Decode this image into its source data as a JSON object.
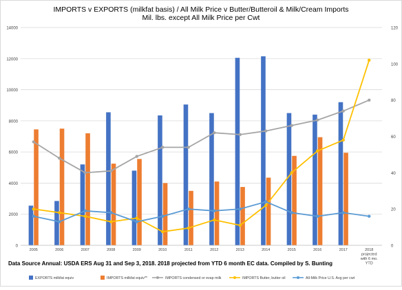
{
  "chart_data": {
    "type": "bar",
    "title": "IMPORTS v EXPORTS (milkfat basis) / All Milk Price v Butter/Butteroil & Milk/Cream Imports",
    "subtitle": "Mil. lbs. except All Milk Price per Cwt",
    "categories": [
      "2005",
      "2006",
      "2007",
      "2008",
      "2009",
      "2010",
      "2011",
      "2012",
      "2013",
      "2014",
      "2015",
      "2016",
      "2017",
      "2018 projected with 6 mo. YTD"
    ],
    "category_label_lines": [
      [
        "2005"
      ],
      [
        "2006"
      ],
      [
        "2007"
      ],
      [
        "2008"
      ],
      [
        "2009"
      ],
      [
        "2010"
      ],
      [
        "2011"
      ],
      [
        "2012"
      ],
      [
        "2013"
      ],
      [
        "2014"
      ],
      [
        "2015"
      ],
      [
        "2016"
      ],
      [
        "2017"
      ],
      [
        "2018",
        "projected",
        "with 6 mo.",
        "YTD"
      ]
    ],
    "y_left": {
      "min": 0,
      "max": 14000,
      "ticks": [
        "0",
        "2000",
        "4000",
        "6000",
        "8000",
        "10000",
        "12000",
        "14000"
      ]
    },
    "y_right": {
      "min": 0,
      "max": 120,
      "ticks": [
        "0",
        "20",
        "40",
        "60",
        "80",
        "100",
        "120"
      ]
    },
    "grid": true,
    "legend_position": "bottom",
    "series": [
      {
        "name": "EXPORTS milkfat equiv",
        "kind": "bar",
        "axis": "left",
        "color": "#4472C4",
        "values": [
          2550,
          2850,
          5200,
          8550,
          4800,
          8350,
          9050,
          8500,
          12050,
          12150,
          8500,
          8400,
          9200,
          null
        ]
      },
      {
        "name": "IMPORTS milkfat equiv**",
        "kind": "bar",
        "axis": "left",
        "color": "#ED7D31",
        "values": [
          7450,
          7500,
          7200,
          5250,
          5550,
          4000,
          3500,
          4100,
          3750,
          4350,
          5750,
          6950,
          5950,
          null
        ]
      },
      {
        "name": "IMPORTS condensed or evap milk",
        "kind": "line",
        "axis": "right",
        "color": "#A5A5A5",
        "marker": "circle",
        "values": [
          57,
          48,
          40,
          41,
          49,
          54,
          54,
          62,
          61,
          63,
          66,
          69,
          74,
          80
        ]
      },
      {
        "name": "IMPORTS Butter, butter oil",
        "kind": "line",
        "axis": "right",
        "color": "#FFC000",
        "marker": "circle",
        "values": [
          20,
          18,
          16,
          13,
          15,
          7.5,
          9.5,
          14,
          11,
          22,
          40,
          52,
          58,
          102
        ]
      },
      {
        "name": "All-Milk Price U.S. Avg per cwt",
        "kind": "line",
        "axis": "right",
        "color": "#5B9BD5",
        "marker": "circle",
        "values": [
          16,
          13,
          19,
          18,
          13,
          16,
          20,
          19,
          20,
          24,
          18,
          16,
          18,
          16
        ]
      }
    ]
  },
  "footnote": "Data Source Annual: USDA ERS Aug 31 and Sep 3, 2018.   2018 projected from YTD 6 month EC data.   Compiled by S. Bunting"
}
